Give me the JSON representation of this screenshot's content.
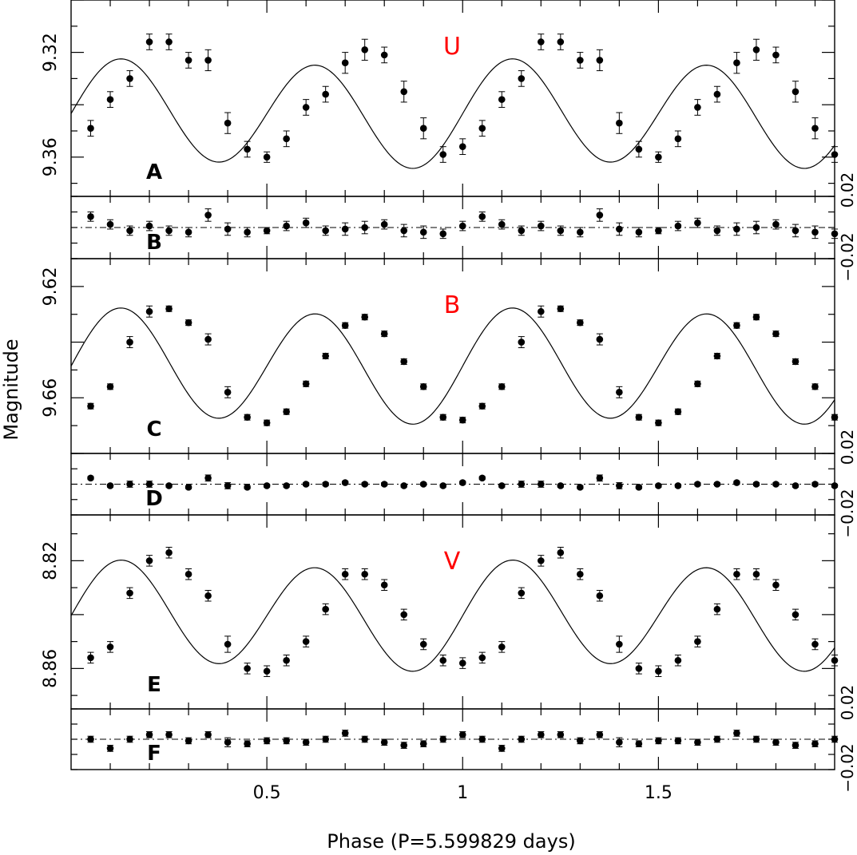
{
  "chart_data": {
    "type": "scatter",
    "xlabel": "Phase (P=5.599829 days)",
    "ylabel": "Magnitude",
    "x_tick_labels": [
      "0.5",
      "1",
      "1.5"
    ],
    "panels": [
      {
        "letter": "A",
        "band": "U",
        "kind": "light_curve",
        "ylim": [
          9.375,
          9.3
        ],
        "y_tick_labels": [
          "9.32",
          "9.36"
        ],
        "model": {
          "mean": 9.3434,
          "amp1": 0.0017,
          "amp2": 0.0197
        },
        "points": [
          [
            0.05,
            9.349
          ],
          [
            0.1,
            9.338
          ],
          [
            0.15,
            9.33
          ],
          [
            0.2,
            9.316
          ],
          [
            0.25,
            9.316
          ],
          [
            0.3,
            9.323
          ],
          [
            0.35,
            9.323
          ],
          [
            0.4,
            9.347
          ],
          [
            0.45,
            9.357
          ],
          [
            0.5,
            9.36
          ],
          [
            0.55,
            9.353
          ],
          [
            0.6,
            9.341
          ],
          [
            0.65,
            9.336
          ],
          [
            0.7,
            9.324
          ],
          [
            0.75,
            9.319
          ],
          [
            0.8,
            9.321
          ],
          [
            0.85,
            9.335
          ],
          [
            0.9,
            9.349
          ],
          [
            0.95,
            9.359
          ],
          [
            1.0,
            9.356
          ]
        ],
        "errors": [
          0.003,
          0.003,
          0.003,
          0.003,
          0.003,
          0.003,
          0.004,
          0.004,
          0.003,
          0.002,
          0.003,
          0.003,
          0.003,
          0.004,
          0.004,
          0.003,
          0.004,
          0.004,
          0.003,
          0.003
        ]
      },
      {
        "letter": "B",
        "kind": "residual",
        "ylim": [
          -0.02,
          0.02
        ],
        "y_tick_labels": [
          "0.02",
          "−0.02"
        ],
        "points": [
          [
            0.05,
            0.007
          ],
          [
            0.1,
            0.002
          ],
          [
            0.15,
            -0.002
          ],
          [
            0.2,
            0.001
          ],
          [
            0.25,
            -0.002
          ],
          [
            0.3,
            -0.003
          ],
          [
            0.35,
            0.008
          ],
          [
            0.4,
            -0.001
          ],
          [
            0.45,
            -0.003
          ],
          [
            0.5,
            -0.002
          ],
          [
            0.55,
            0.001
          ],
          [
            0.6,
            0.003
          ],
          [
            0.65,
            -0.002
          ],
          [
            0.7,
            -0.001
          ],
          [
            0.75,
            0.0
          ],
          [
            0.8,
            0.002
          ],
          [
            0.85,
            -0.002
          ],
          [
            0.9,
            -0.003
          ],
          [
            0.95,
            -0.004
          ],
          [
            1.0,
            0.001
          ]
        ],
        "errors": [
          0.003,
          0.003,
          0.003,
          0.003,
          0.003,
          0.003,
          0.004,
          0.004,
          0.003,
          0.002,
          0.003,
          0.003,
          0.003,
          0.004,
          0.004,
          0.003,
          0.004,
          0.004,
          0.003,
          0.003
        ]
      },
      {
        "letter": "C",
        "band": "B",
        "kind": "light_curve",
        "ylim": [
          9.68,
          9.61
        ],
        "y_tick_labels": [
          "9.62",
          "9.66"
        ],
        "model": {
          "mean": 9.6486,
          "amp1": 0.0015,
          "amp2": 0.0198
        },
        "points": [
          [
            0.05,
            9.663
          ],
          [
            0.1,
            9.656
          ],
          [
            0.15,
            9.64
          ],
          [
            0.2,
            9.629
          ],
          [
            0.25,
            9.628
          ],
          [
            0.3,
            9.633
          ],
          [
            0.35,
            9.639
          ],
          [
            0.4,
            9.658
          ],
          [
            0.45,
            9.667
          ],
          [
            0.5,
            9.669
          ],
          [
            0.55,
            9.665
          ],
          [
            0.6,
            9.655
          ],
          [
            0.65,
            9.645
          ],
          [
            0.7,
            9.634
          ],
          [
            0.75,
            9.631
          ],
          [
            0.8,
            9.637
          ],
          [
            0.85,
            9.647
          ],
          [
            0.9,
            9.656
          ],
          [
            0.95,
            9.667
          ],
          [
            1.0,
            9.668
          ]
        ],
        "errors": [
          0.001,
          0.001,
          0.002,
          0.002,
          0.001,
          0.001,
          0.002,
          0.002,
          0.001,
          0.001,
          0.001,
          0.001,
          0.001,
          0.001,
          0.001,
          0.001,
          0.001,
          0.001,
          0.001,
          0.001
        ]
      },
      {
        "letter": "D",
        "kind": "residual",
        "ylim": [
          -0.02,
          0.02
        ],
        "y_tick_labels": [
          "0.02",
          "−0.02"
        ],
        "points": [
          [
            0.05,
            0.004
          ],
          [
            0.1,
            -0.001
          ],
          [
            0.15,
            0.0
          ],
          [
            0.2,
            0.0
          ],
          [
            0.25,
            -0.001
          ],
          [
            0.3,
            -0.002
          ],
          [
            0.35,
            0.004
          ],
          [
            0.4,
            -0.001
          ],
          [
            0.45,
            -0.002
          ],
          [
            0.5,
            -0.001
          ],
          [
            0.55,
            -0.001
          ],
          [
            0.6,
            0.0
          ],
          [
            0.65,
            0.0
          ],
          [
            0.7,
            0.001
          ],
          [
            0.75,
            0.0
          ],
          [
            0.8,
            0.0
          ],
          [
            0.85,
            -0.001
          ],
          [
            0.9,
            0.0
          ],
          [
            0.95,
            -0.001
          ],
          [
            1.0,
            0.001
          ]
        ],
        "errors": [
          0.001,
          0.001,
          0.002,
          0.002,
          0.001,
          0.001,
          0.002,
          0.002,
          0.001,
          0.001,
          0.001,
          0.001,
          0.001,
          0.001,
          0.001,
          0.001,
          0.001,
          0.001,
          0.001,
          0.001
        ]
      },
      {
        "letter": "E",
        "band": "V",
        "kind": "light_curve",
        "ylim": [
          8.875,
          8.803
        ],
        "y_tick_labels": [
          "8.82",
          "8.86"
        ],
        "model": {
          "mean": 8.8404,
          "amp1": 0.002,
          "amp2": 0.0192
        },
        "points": [
          [
            0.05,
            8.856
          ],
          [
            0.1,
            8.852
          ],
          [
            0.15,
            8.832
          ],
          [
            0.2,
            8.82
          ],
          [
            0.25,
            8.817
          ],
          [
            0.3,
            8.825
          ],
          [
            0.35,
            8.833
          ],
          [
            0.4,
            8.851
          ],
          [
            0.45,
            8.86
          ],
          [
            0.5,
            8.861
          ],
          [
            0.55,
            8.857
          ],
          [
            0.6,
            8.85
          ],
          [
            0.65,
            8.838
          ],
          [
            0.7,
            8.825
          ],
          [
            0.75,
            8.825
          ],
          [
            0.8,
            8.829
          ],
          [
            0.85,
            8.84
          ],
          [
            0.9,
            8.851
          ],
          [
            0.95,
            8.857
          ],
          [
            1.0,
            8.858
          ]
        ],
        "errors": [
          0.002,
          0.002,
          0.002,
          0.002,
          0.002,
          0.002,
          0.002,
          0.003,
          0.002,
          0.002,
          0.002,
          0.002,
          0.002,
          0.002,
          0.002,
          0.002,
          0.002,
          0.002,
          0.002,
          0.002
        ]
      },
      {
        "letter": "F",
        "kind": "residual",
        "ylim": [
          -0.02,
          0.02
        ],
        "y_tick_labels": [
          "0.02",
          "−0.02"
        ],
        "points": [
          [
            0.05,
            0.0
          ],
          [
            0.1,
            -0.006
          ],
          [
            0.15,
            0.0
          ],
          [
            0.2,
            0.003
          ],
          [
            0.25,
            0.003
          ],
          [
            0.3,
            -0.001
          ],
          [
            0.35,
            0.003
          ],
          [
            0.4,
            -0.002
          ],
          [
            0.45,
            -0.003
          ],
          [
            0.5,
            -0.001
          ],
          [
            0.55,
            -0.001
          ],
          [
            0.6,
            -0.002
          ],
          [
            0.65,
            0.0
          ],
          [
            0.7,
            0.004
          ],
          [
            0.75,
            0.0
          ],
          [
            0.8,
            -0.002
          ],
          [
            0.85,
            -0.004
          ],
          [
            0.9,
            -0.003
          ],
          [
            0.95,
            0.0
          ],
          [
            1.0,
            0.003
          ]
        ],
        "errors": [
          0.002,
          0.002,
          0.002,
          0.002,
          0.002,
          0.002,
          0.002,
          0.003,
          0.002,
          0.002,
          0.002,
          0.002,
          0.002,
          0.002,
          0.002,
          0.002,
          0.002,
          0.002,
          0.002,
          0.002
        ]
      }
    ]
  }
}
